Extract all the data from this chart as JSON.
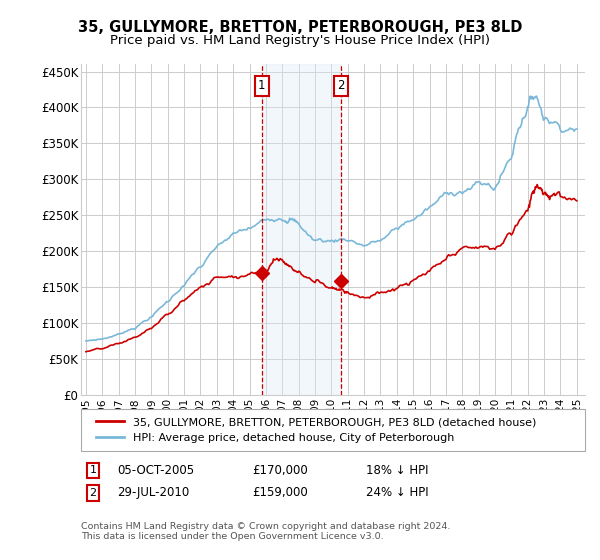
{
  "title": "35, GULLYMORE, BRETTON, PETERBOROUGH, PE3 8LD",
  "subtitle": "Price paid vs. HM Land Registry's House Price Index (HPI)",
  "title_fontsize": 10.5,
  "subtitle_fontsize": 9.5,
  "ylabel_ticks": [
    "£0",
    "£50K",
    "£100K",
    "£150K",
    "£200K",
    "£250K",
    "£300K",
    "£350K",
    "£400K",
    "£450K"
  ],
  "ytick_values": [
    0,
    50000,
    100000,
    150000,
    200000,
    250000,
    300000,
    350000,
    400000,
    450000
  ],
  "ylim": [
    0,
    460000
  ],
  "xlim_start": 1994.7,
  "xlim_end": 2025.5,
  "xtick_years": [
    1995,
    1996,
    1997,
    1998,
    1999,
    2000,
    2001,
    2002,
    2003,
    2004,
    2005,
    2006,
    2007,
    2008,
    2009,
    2010,
    2011,
    2012,
    2013,
    2014,
    2015,
    2016,
    2017,
    2018,
    2019,
    2020,
    2021,
    2022,
    2023,
    2024,
    2025
  ],
  "hpi_color": "#7ab8d9",
  "price_color": "#cc0000",
  "sale1_date": 2005.75,
  "sale1_price": 170000,
  "sale2_date": 2010.57,
  "sale2_price": 159000,
  "legend_label_price": "35, GULLYMORE, BRETTON, PETERBOROUGH, PE3 8LD (detached house)",
  "legend_label_hpi": "HPI: Average price, detached house, City of Peterborough",
  "footnote": "Contains HM Land Registry data © Crown copyright and database right 2024.\nThis data is licensed under the Open Government Licence v3.0.",
  "background_color": "#ffffff",
  "grid_color": "#cccccc",
  "shaded_region_color": "#daeaf5"
}
